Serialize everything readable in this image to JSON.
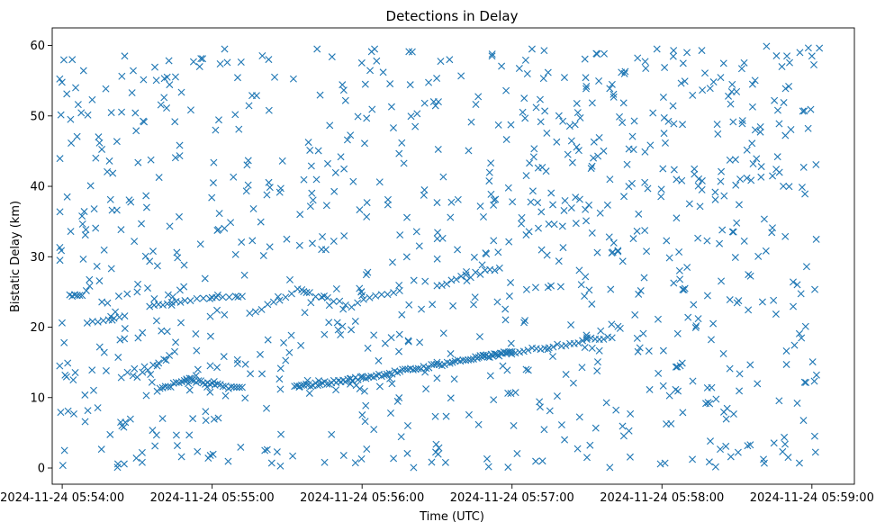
{
  "chart_data": {
    "type": "scatter",
    "title": "Detections in Delay",
    "xlabel": "Time (UTC)",
    "ylabel": "Bistatic Delay (km)",
    "marker": "x",
    "color": "#1f77b4",
    "x_range": [
      "2024-11-24 05:53:56",
      "2024-11-24 05:59:17"
    ],
    "ylim": [
      -2.3,
      62.5
    ],
    "x_ticks": [
      "2024-11-24 05:54:00",
      "2024-11-24 05:55:00",
      "2024-11-24 05:56:00",
      "2024-11-24 05:57:00",
      "2024-11-24 05:58:00",
      "2024-11-24 05:59:00"
    ],
    "y_ticks": [
      0,
      10,
      20,
      30,
      40,
      50,
      60
    ],
    "grid": false,
    "track_samples": [
      {
        "x": "2024-11-24 05:54:05",
        "y": 24.6
      },
      {
        "x": "2024-11-24 05:54:20",
        "y": 21.0
      },
      {
        "x": "2024-11-24 05:54:58",
        "y": 11.5
      },
      {
        "x": "2024-11-24 05:55:35",
        "y": 11.6
      },
      {
        "x": "2024-11-24 05:56:00",
        "y": 13.0
      },
      {
        "x": "2024-11-24 05:56:30",
        "y": 15.0
      },
      {
        "x": "2024-11-24 05:57:00",
        "y": 16.5
      },
      {
        "x": "2024-11-24 05:57:30",
        "y": 18.5
      },
      {
        "x": "2024-11-24 05:56:00",
        "y": 24.5
      },
      {
        "x": "2024-11-24 05:55:00",
        "y": 24.2
      },
      {
        "x": "2024-11-24 05:54:38",
        "y": 14.5
      },
      {
        "x": "2024-11-24 05:54:30",
        "y": 25.0
      }
    ],
    "scatter_samples": [
      {
        "x": "2024-11-24 05:53:59",
        "y": 14.5
      },
      {
        "x": "2024-11-24 05:54:02",
        "y": 38.5
      },
      {
        "x": "2024-11-24 05:54:04",
        "y": 58.0
      },
      {
        "x": "2024-11-24 05:54:12",
        "y": 52.3
      },
      {
        "x": "2024-11-24 05:54:25",
        "y": 58.5
      },
      {
        "x": "2024-11-24 05:54:42",
        "y": 55.5
      },
      {
        "x": "2024-11-24 05:54:55",
        "y": 57.0
      },
      {
        "x": "2024-11-24 05:55:05",
        "y": 59.5
      },
      {
        "x": "2024-11-24 05:55:25",
        "y": 55.5
      },
      {
        "x": "2024-11-24 05:55:42",
        "y": 59.5
      },
      {
        "x": "2024-11-24 05:56:05",
        "y": 59.5
      },
      {
        "x": "2024-11-24 05:56:35",
        "y": 58.0
      },
      {
        "x": "2024-11-24 05:56:52",
        "y": 58.5
      },
      {
        "x": "2024-11-24 05:57:08",
        "y": 59.5
      },
      {
        "x": "2024-11-24 05:57:45",
        "y": 56.0
      },
      {
        "x": "2024-11-24 05:57:58",
        "y": 59.5
      },
      {
        "x": "2024-11-24 05:58:10",
        "y": 59.0
      },
      {
        "x": "2024-11-24 05:58:48",
        "y": 57.0
      },
      {
        "x": "2024-11-24 05:59:00",
        "y": 58.5
      },
      {
        "x": "2024-11-24 05:55:45",
        "y": 0.8
      },
      {
        "x": "2024-11-24 05:54:32",
        "y": 0.8
      },
      {
        "x": "2024-11-24 05:58:55",
        "y": 0.7
      },
      {
        "x": "2024-11-24 05:56:50",
        "y": 1.3
      },
      {
        "x": "2024-11-24 05:57:30",
        "y": 1.5
      }
    ]
  }
}
